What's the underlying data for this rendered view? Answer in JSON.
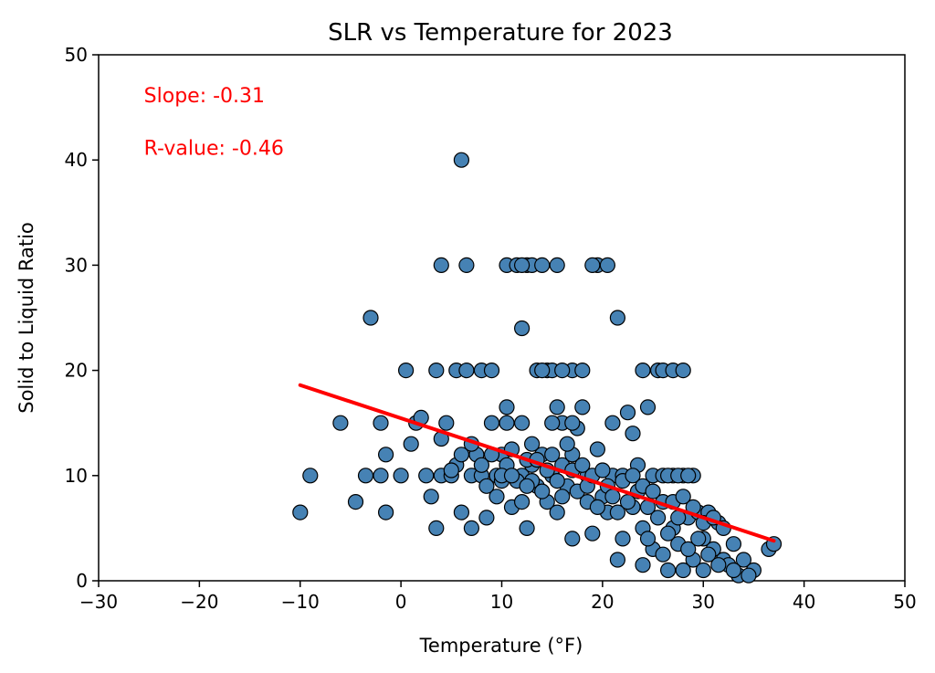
{
  "chart_data": {
    "type": "scatter",
    "title": "SLR vs Temperature for 2023",
    "xlabel": "Temperature (°F)",
    "ylabel": "Solid to Liquid Ratio",
    "xlim": [
      -30,
      50
    ],
    "ylim": [
      0,
      50
    ],
    "xticks": [
      -30,
      -20,
      -10,
      0,
      10,
      20,
      30,
      40,
      50
    ],
    "yticks": [
      0,
      10,
      20,
      30,
      40,
      50
    ],
    "xtick_labels": [
      "−30",
      "−20",
      "−10",
      "0",
      "10",
      "20",
      "30",
      "40",
      "50"
    ],
    "ytick_labels": [
      "0",
      "10",
      "20",
      "30",
      "40",
      "50"
    ],
    "grid": false,
    "colors": {
      "marker_fill": "#4682b4",
      "marker_edge": "#000000",
      "regression_line": "#ff0000",
      "annotation_text": "#ff0000"
    },
    "annotations": [
      {
        "text": "Slope: -0.31",
        "x": -25.5,
        "y": 45.5
      },
      {
        "text": "R-value: -0.46",
        "x": -25.5,
        "y": 40.5
      }
    ],
    "regression": {
      "x": [
        -10,
        37
      ],
      "y": [
        18.6,
        3.8
      ]
    },
    "points": [
      [
        -10,
        6.5
      ],
      [
        -9,
        10
      ],
      [
        -6,
        15
      ],
      [
        -4.5,
        7.5
      ],
      [
        -3.5,
        10
      ],
      [
        -3,
        25
      ],
      [
        -2,
        10
      ],
      [
        -2,
        15
      ],
      [
        -1.5,
        12
      ],
      [
        -1.5,
        6.5
      ],
      [
        0,
        10
      ],
      [
        0.5,
        20
      ],
      [
        1,
        13
      ],
      [
        1.5,
        15
      ],
      [
        2,
        15.5
      ],
      [
        2.5,
        10
      ],
      [
        3,
        8
      ],
      [
        3.5,
        5
      ],
      [
        3.5,
        20
      ],
      [
        4,
        13.5
      ],
      [
        4,
        10
      ],
      [
        4,
        30
      ],
      [
        4.5,
        15
      ],
      [
        5,
        10
      ],
      [
        5.5,
        11
      ],
      [
        5.5,
        20
      ],
      [
        6,
        40
      ],
      [
        6,
        6.5
      ],
      [
        6.5,
        30
      ],
      [
        6.5,
        20
      ],
      [
        7,
        10
      ],
      [
        7,
        5
      ],
      [
        7.5,
        12
      ],
      [
        8,
        10
      ],
      [
        8,
        20
      ],
      [
        8.5,
        6
      ],
      [
        9,
        15
      ],
      [
        9,
        20
      ],
      [
        9.5,
        10
      ],
      [
        9.5,
        8
      ],
      [
        10,
        12
      ],
      [
        10.5,
        30
      ],
      [
        10.5,
        16.5
      ],
      [
        10.5,
        15
      ],
      [
        11,
        10
      ],
      [
        11,
        7
      ],
      [
        11.5,
        30
      ],
      [
        12,
        24
      ],
      [
        12,
        15
      ],
      [
        12,
        10
      ],
      [
        12.5,
        30
      ],
      [
        12.5,
        5
      ],
      [
        13,
        30
      ],
      [
        13,
        11
      ],
      [
        13.5,
        20
      ],
      [
        13.5,
        9
      ],
      [
        14,
        30
      ],
      [
        14,
        12
      ],
      [
        14.5,
        20
      ],
      [
        14.5,
        7.5
      ],
      [
        15,
        20
      ],
      [
        15,
        10
      ],
      [
        15.5,
        30
      ],
      [
        15.5,
        16.5
      ],
      [
        15.5,
        6.5
      ],
      [
        16,
        15
      ],
      [
        16,
        11
      ],
      [
        16.5,
        9
      ],
      [
        17,
        20
      ],
      [
        17,
        12
      ],
      [
        17,
        4
      ],
      [
        17.5,
        14.5
      ],
      [
        18,
        16.5
      ],
      [
        18,
        20
      ],
      [
        18.5,
        7.5
      ],
      [
        18.5,
        10
      ],
      [
        19,
        4.5
      ],
      [
        19.5,
        30
      ],
      [
        19.5,
        12.5
      ],
      [
        20,
        8
      ],
      [
        20.5,
        30
      ],
      [
        20.5,
        6.5
      ],
      [
        21,
        15
      ],
      [
        21,
        10
      ],
      [
        21.5,
        25
      ],
      [
        21.5,
        2
      ],
      [
        22,
        10
      ],
      [
        22.5,
        16
      ],
      [
        23,
        7
      ],
      [
        23,
        14
      ],
      [
        23.5,
        11
      ],
      [
        24,
        20
      ],
      [
        24,
        5
      ],
      [
        24,
        1.5
      ],
      [
        24.5,
        16.5
      ],
      [
        25,
        10
      ],
      [
        25,
        3
      ],
      [
        25.5,
        20
      ],
      [
        26,
        20
      ],
      [
        26,
        7.5
      ],
      [
        26.5,
        1
      ],
      [
        27,
        20
      ],
      [
        27,
        10
      ],
      [
        27,
        5
      ],
      [
        27.5,
        3.5
      ],
      [
        28,
        20
      ],
      [
        28,
        10
      ],
      [
        28.5,
        6
      ],
      [
        29,
        2
      ],
      [
        29.5,
        6.5
      ],
      [
        30,
        4
      ],
      [
        30,
        1
      ],
      [
        30.5,
        6.5
      ],
      [
        31,
        3
      ],
      [
        31.5,
        5.5
      ],
      [
        32,
        2
      ],
      [
        32.5,
        1.5
      ],
      [
        33,
        3.5
      ],
      [
        33.5,
        0.5
      ],
      [
        34,
        2
      ],
      [
        35,
        1
      ],
      [
        36.5,
        3
      ],
      [
        37,
        3.5
      ],
      [
        5,
        10.5
      ],
      [
        6,
        12
      ],
      [
        7,
        13
      ],
      [
        8,
        11
      ],
      [
        8.5,
        9
      ],
      [
        9,
        12
      ],
      [
        10,
        9.5
      ],
      [
        10.5,
        11
      ],
      [
        11,
        12.5
      ],
      [
        11.5,
        9.5
      ],
      [
        12,
        7.5
      ],
      [
        12.5,
        11.5
      ],
      [
        13,
        9.5
      ],
      [
        13.5,
        11.5
      ],
      [
        14,
        8.5
      ],
      [
        14.5,
        10.5
      ],
      [
        15,
        12
      ],
      [
        15.5,
        9.5
      ],
      [
        16,
        8
      ],
      [
        16.5,
        13
      ],
      [
        17,
        10.5
      ],
      [
        17.5,
        8.5
      ],
      [
        18,
        11
      ],
      [
        18.5,
        9
      ],
      [
        19,
        10
      ],
      [
        19.5,
        7
      ],
      [
        20,
        10.5
      ],
      [
        20.5,
        9
      ],
      [
        21,
        8
      ],
      [
        21.5,
        6.5
      ],
      [
        22,
        9.5
      ],
      [
        22.5,
        7.5
      ],
      [
        23,
        10
      ],
      [
        23.5,
        8.5
      ],
      [
        24,
        9
      ],
      [
        24.5,
        7
      ],
      [
        25,
        8.5
      ],
      [
        25.5,
        6
      ],
      [
        26,
        10
      ],
      [
        26.5,
        4.5
      ],
      [
        27,
        7.5
      ],
      [
        27.5,
        6
      ],
      [
        28,
        8
      ],
      [
        28.5,
        3
      ],
      [
        29,
        7
      ],
      [
        29.5,
        4
      ],
      [
        30,
        5.5
      ],
      [
        30.5,
        2.5
      ],
      [
        31,
        6
      ],
      [
        31.5,
        1.5
      ],
      [
        12,
        30
      ],
      [
        14,
        20
      ],
      [
        16,
        20
      ],
      [
        19,
        30
      ],
      [
        26.5,
        10
      ],
      [
        27.5,
        10
      ],
      [
        29,
        10
      ],
      [
        28.5,
        10
      ],
      [
        10,
        10
      ],
      [
        13,
        13
      ],
      [
        15,
        15
      ],
      [
        17,
        15
      ],
      [
        11,
        10
      ],
      [
        12.5,
        9
      ],
      [
        22,
        4
      ],
      [
        24.5,
        4
      ],
      [
        26,
        2.5
      ],
      [
        28,
        1
      ],
      [
        32,
        5
      ],
      [
        33,
        1
      ],
      [
        34.5,
        0.5
      ]
    ]
  }
}
